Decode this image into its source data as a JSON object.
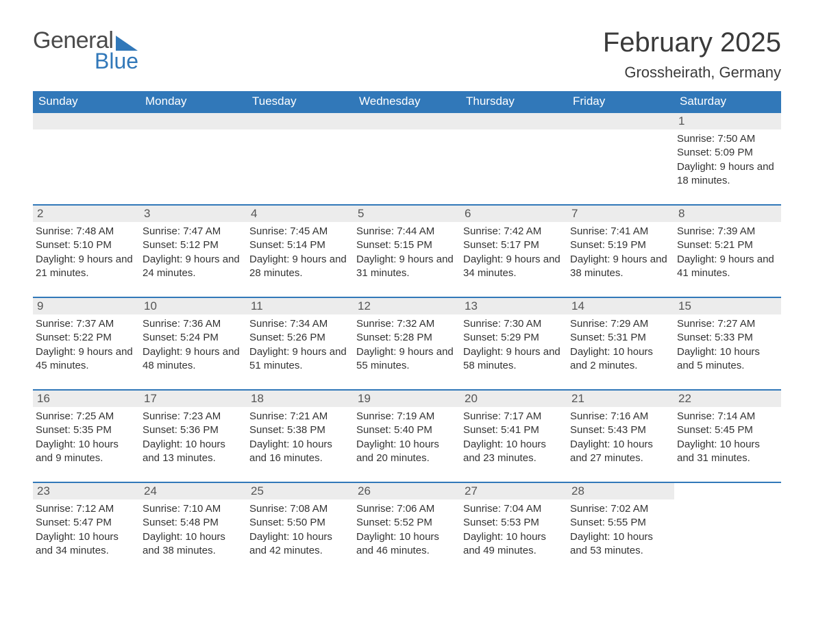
{
  "brand": {
    "word1": "General",
    "word2": "Blue",
    "text_color": "#4a4a4a",
    "accent_color": "#3178b9"
  },
  "title": "February 2025",
  "location": "Grossheirath, Germany",
  "colors": {
    "header_bg": "#3178b9",
    "header_text": "#ffffff",
    "row_border": "#3178b9",
    "daynum_bg": "#ececec",
    "body_text": "#333333",
    "page_bg": "#ffffff"
  },
  "typography": {
    "title_fontsize": 40,
    "location_fontsize": 22,
    "dayhead_fontsize": 17,
    "daynum_fontsize": 17,
    "details_fontsize": 15
  },
  "day_names": [
    "Sunday",
    "Monday",
    "Tuesday",
    "Wednesday",
    "Thursday",
    "Friday",
    "Saturday"
  ],
  "labels": {
    "sunrise": "Sunrise",
    "sunset": "Sunset",
    "daylight": "Daylight"
  },
  "weeks": [
    [
      null,
      null,
      null,
      null,
      null,
      null,
      {
        "n": "1",
        "sunrise": "7:50 AM",
        "sunset": "5:09 PM",
        "daylight": "9 hours and 18 minutes."
      }
    ],
    [
      {
        "n": "2",
        "sunrise": "7:48 AM",
        "sunset": "5:10 PM",
        "daylight": "9 hours and 21 minutes."
      },
      {
        "n": "3",
        "sunrise": "7:47 AM",
        "sunset": "5:12 PM",
        "daylight": "9 hours and 24 minutes."
      },
      {
        "n": "4",
        "sunrise": "7:45 AM",
        "sunset": "5:14 PM",
        "daylight": "9 hours and 28 minutes."
      },
      {
        "n": "5",
        "sunrise": "7:44 AM",
        "sunset": "5:15 PM",
        "daylight": "9 hours and 31 minutes."
      },
      {
        "n": "6",
        "sunrise": "7:42 AM",
        "sunset": "5:17 PM",
        "daylight": "9 hours and 34 minutes."
      },
      {
        "n": "7",
        "sunrise": "7:41 AM",
        "sunset": "5:19 PM",
        "daylight": "9 hours and 38 minutes."
      },
      {
        "n": "8",
        "sunrise": "7:39 AM",
        "sunset": "5:21 PM",
        "daylight": "9 hours and 41 minutes."
      }
    ],
    [
      {
        "n": "9",
        "sunrise": "7:37 AM",
        "sunset": "5:22 PM",
        "daylight": "9 hours and 45 minutes."
      },
      {
        "n": "10",
        "sunrise": "7:36 AM",
        "sunset": "5:24 PM",
        "daylight": "9 hours and 48 minutes."
      },
      {
        "n": "11",
        "sunrise": "7:34 AM",
        "sunset": "5:26 PM",
        "daylight": "9 hours and 51 minutes."
      },
      {
        "n": "12",
        "sunrise": "7:32 AM",
        "sunset": "5:28 PM",
        "daylight": "9 hours and 55 minutes."
      },
      {
        "n": "13",
        "sunrise": "7:30 AM",
        "sunset": "5:29 PM",
        "daylight": "9 hours and 58 minutes."
      },
      {
        "n": "14",
        "sunrise": "7:29 AM",
        "sunset": "5:31 PM",
        "daylight": "10 hours and 2 minutes."
      },
      {
        "n": "15",
        "sunrise": "7:27 AM",
        "sunset": "5:33 PM",
        "daylight": "10 hours and 5 minutes."
      }
    ],
    [
      {
        "n": "16",
        "sunrise": "7:25 AM",
        "sunset": "5:35 PM",
        "daylight": "10 hours and 9 minutes."
      },
      {
        "n": "17",
        "sunrise": "7:23 AM",
        "sunset": "5:36 PM",
        "daylight": "10 hours and 13 minutes."
      },
      {
        "n": "18",
        "sunrise": "7:21 AM",
        "sunset": "5:38 PM",
        "daylight": "10 hours and 16 minutes."
      },
      {
        "n": "19",
        "sunrise": "7:19 AM",
        "sunset": "5:40 PM",
        "daylight": "10 hours and 20 minutes."
      },
      {
        "n": "20",
        "sunrise": "7:17 AM",
        "sunset": "5:41 PM",
        "daylight": "10 hours and 23 minutes."
      },
      {
        "n": "21",
        "sunrise": "7:16 AM",
        "sunset": "5:43 PM",
        "daylight": "10 hours and 27 minutes."
      },
      {
        "n": "22",
        "sunrise": "7:14 AM",
        "sunset": "5:45 PM",
        "daylight": "10 hours and 31 minutes."
      }
    ],
    [
      {
        "n": "23",
        "sunrise": "7:12 AM",
        "sunset": "5:47 PM",
        "daylight": "10 hours and 34 minutes."
      },
      {
        "n": "24",
        "sunrise": "7:10 AM",
        "sunset": "5:48 PM",
        "daylight": "10 hours and 38 minutes."
      },
      {
        "n": "25",
        "sunrise": "7:08 AM",
        "sunset": "5:50 PM",
        "daylight": "10 hours and 42 minutes."
      },
      {
        "n": "26",
        "sunrise": "7:06 AM",
        "sunset": "5:52 PM",
        "daylight": "10 hours and 46 minutes."
      },
      {
        "n": "27",
        "sunrise": "7:04 AM",
        "sunset": "5:53 PM",
        "daylight": "10 hours and 49 minutes."
      },
      {
        "n": "28",
        "sunrise": "7:02 AM",
        "sunset": "5:55 PM",
        "daylight": "10 hours and 53 minutes."
      },
      null
    ]
  ]
}
